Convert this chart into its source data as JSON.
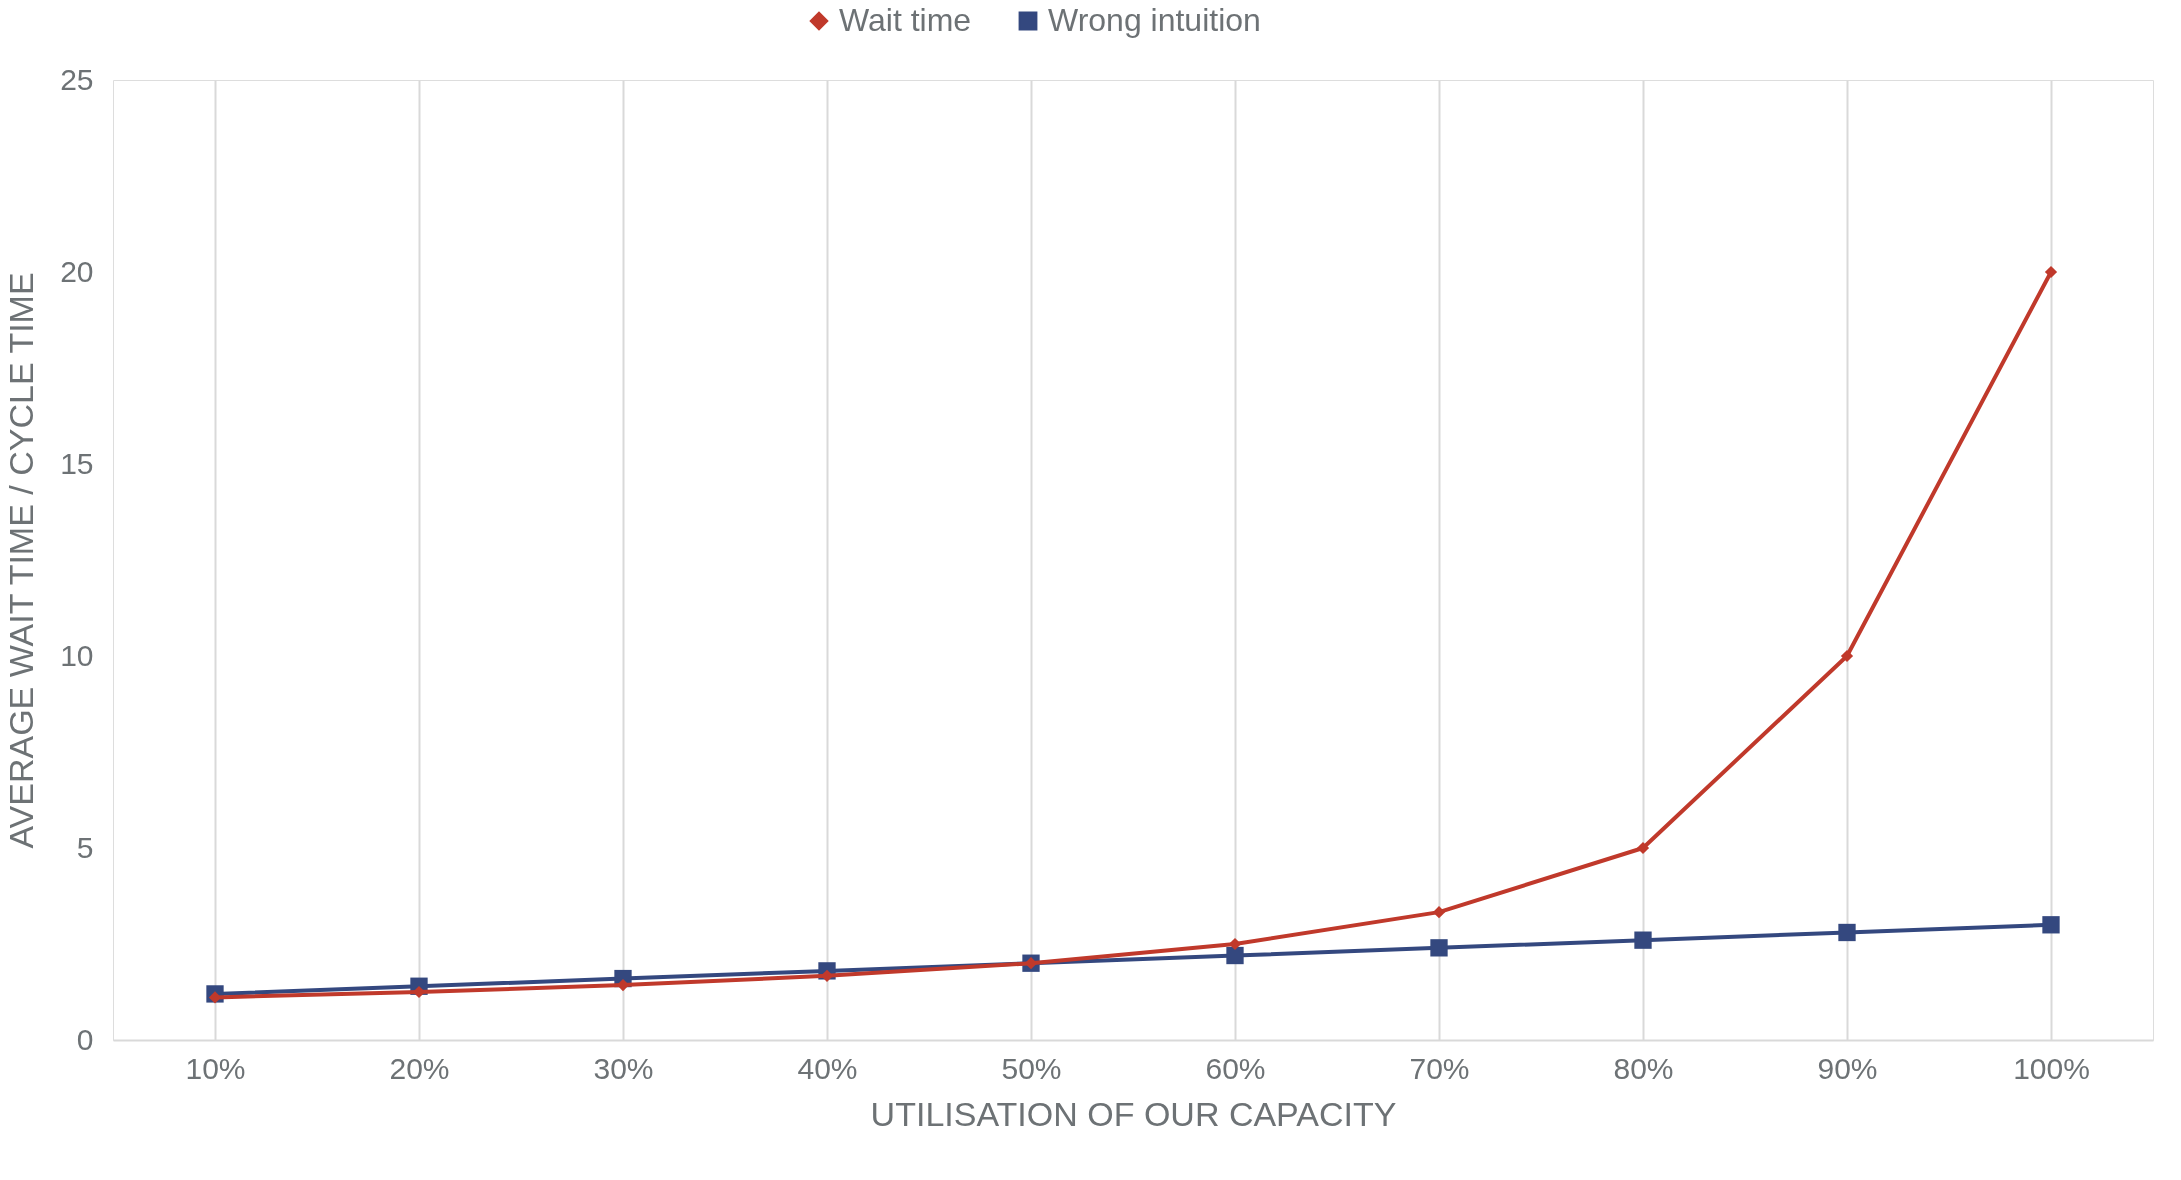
{
  "chart_data": {
    "type": "line",
    "xlabel": "UTILISATION OF OUR CAPACITY",
    "ylabel": "AVERAGE WAIT TIME / CYCLE TIME",
    "categories": [
      "10%",
      "20%",
      "30%",
      "40%",
      "50%",
      "60%",
      "70%",
      "80%",
      "90%",
      "100%"
    ],
    "series": [
      {
        "name": "Wait time",
        "color": "#c0392b",
        "marker": "diamond",
        "values": [
          1.11,
          1.25,
          1.43,
          1.67,
          2.0,
          2.5,
          3.33,
          5.0,
          10.0,
          20.0
        ]
      },
      {
        "name": "Wrong intuition",
        "color": "#34487f",
        "marker": "square",
        "values": [
          1.2,
          1.4,
          1.6,
          1.8,
          2.0,
          2.2,
          2.4,
          2.6,
          2.8,
          3.0
        ]
      }
    ],
    "ylim": [
      0,
      25
    ],
    "yticks": [
      0,
      5,
      10,
      15,
      20,
      25
    ],
    "grid": "x",
    "legend": "top",
    "line_style": "solid"
  }
}
